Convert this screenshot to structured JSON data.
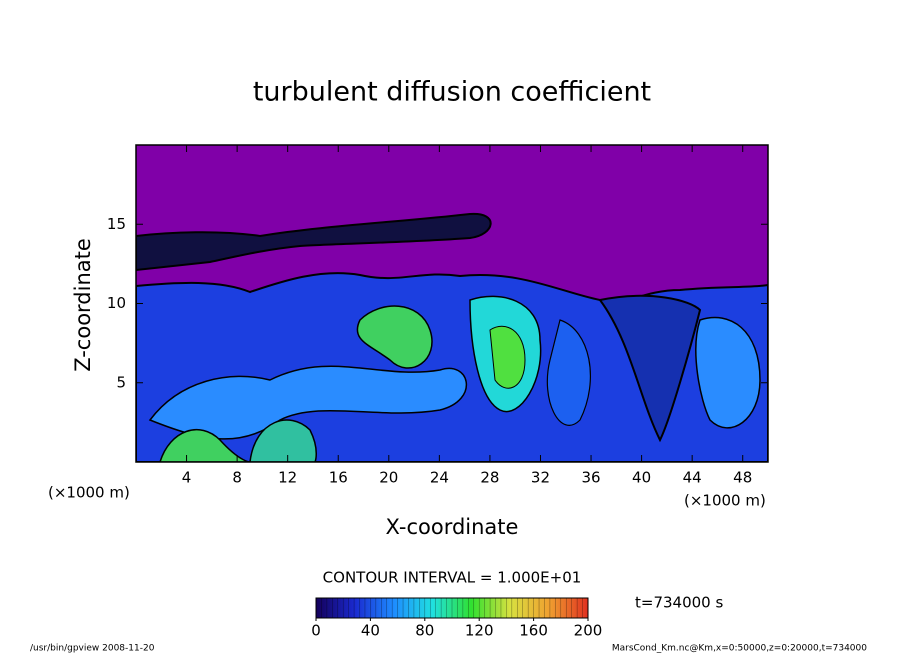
{
  "chart_data": {
    "type": "contour",
    "title": "turbulent diffusion coefficient",
    "x_label": "X-coordinate",
    "y_label": "Z-coordinate",
    "x_unit": "(×1000 m)",
    "y_unit": "(×1000 m)",
    "xlim": [
      0,
      50
    ],
    "xticks": [
      4,
      8,
      12,
      16,
      20,
      24,
      28,
      32,
      36,
      40,
      44,
      48
    ],
    "ylim": [
      0,
      20
    ],
    "yticks": [
      5,
      10,
      15
    ],
    "contour_interval": "CONTOUR INTERVAL = 1.000E+01",
    "time": "t=734000 s",
    "colorbar": {
      "lim": [
        0,
        200
      ],
      "ticks": [
        0,
        40,
        80,
        120,
        160,
        200
      ],
      "colors": [
        "#14005a",
        "#1a2ad0",
        "#1e8cff",
        "#20e0e0",
        "#30e030",
        "#d8e040",
        "#f0a030",
        "#e03020"
      ]
    },
    "footer_left": "/usr/bin/gpview  2008-11-20",
    "footer_right": "MarsCond_Km.nc@Km,x=0:50000,z=0:20000,t=734000"
  }
}
